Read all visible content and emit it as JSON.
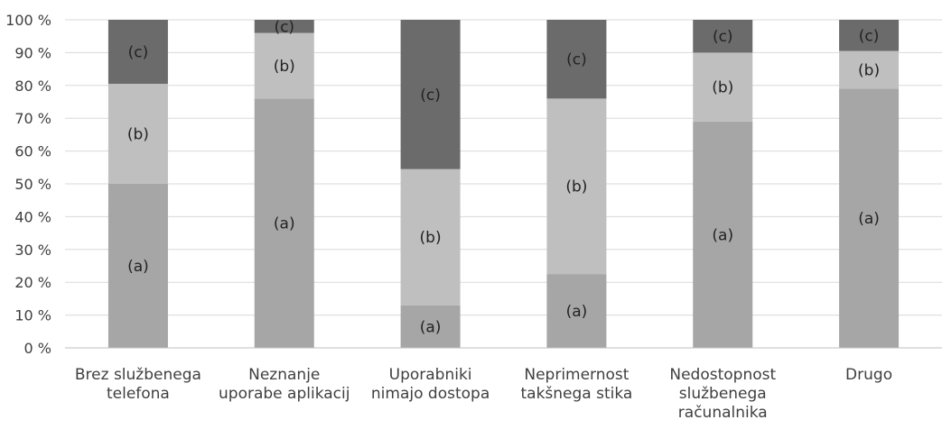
{
  "chart_data": {
    "type": "bar",
    "stacked": true,
    "percent_stacked": true,
    "categories": [
      [
        "Brez službenega",
        "telefona"
      ],
      [
        "Neznanje",
        "uporabe aplikacij"
      ],
      [
        "Uporabniki",
        "nimajo dostopa"
      ],
      [
        "Neprimernost",
        "takšnega stika"
      ],
      [
        "Nedostopnost",
        "službenega",
        "računalnika"
      ],
      [
        "Drugo"
      ]
    ],
    "series": [
      {
        "label": "(a)",
        "color": "#a6a6a6",
        "values": [
          50,
          76,
          13,
          22.5,
          69,
          79
        ]
      },
      {
        "label": "(b)",
        "color": "#bfbfbf",
        "values": [
          30.5,
          20,
          41.5,
          53.5,
          21,
          11.5
        ]
      },
      {
        "label": "(c)",
        "color": "#6b6b6b",
        "values": [
          19.5,
          4,
          45.5,
          24,
          10,
          9.5
        ]
      }
    ],
    "y_ticks": [
      "0 %",
      "10 %",
      "20 %",
      "30 %",
      "40 %",
      "50 %",
      "60 %",
      "70 %",
      "80 %",
      "90 %",
      "100 %"
    ],
    "ylim": [
      0,
      100
    ],
    "grid": true,
    "legend": "none"
  }
}
